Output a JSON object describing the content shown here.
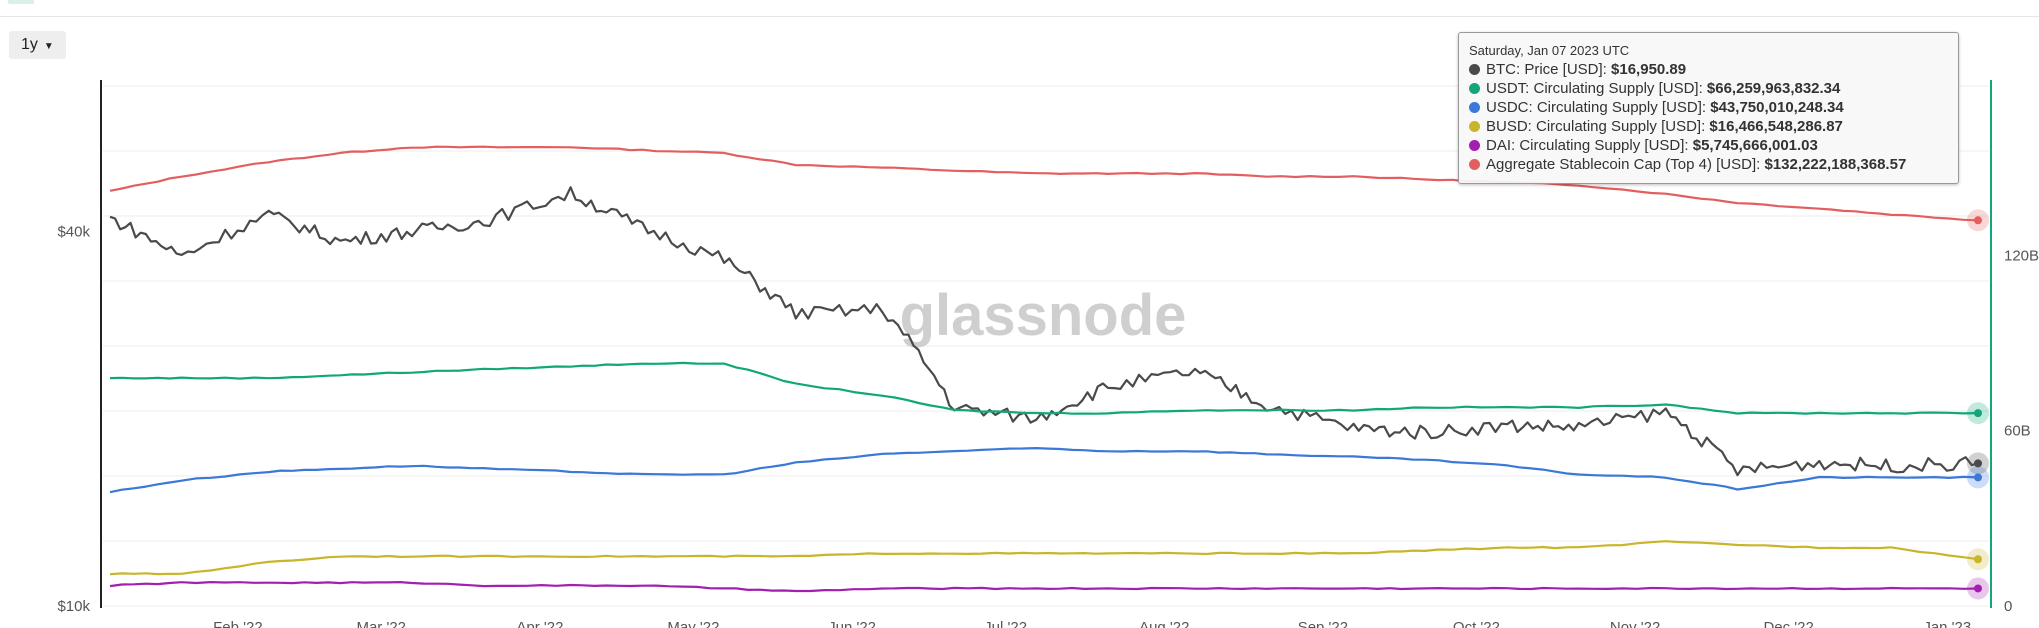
{
  "toolbar": {
    "range_label": "1y"
  },
  "watermark": "glassnode",
  "tooltip": {
    "date": "Saturday, Jan 07 2023 UTC",
    "rows": [
      {
        "color": "#4a4a4a",
        "label": "BTC: Price [USD]:",
        "value": "$16,950.89"
      },
      {
        "color": "#11a77a",
        "label": "USDT: Circulating Supply [USD]:",
        "value": "$66,259,963,832.34"
      },
      {
        "color": "#3b78d8",
        "label": "USDC: Circulating Supply [USD]:",
        "value": "$43,750,010,248.34"
      },
      {
        "color": "#c8b52a",
        "label": "BUSD: Circulating Supply [USD]:",
        "value": "$16,466,548,286.87"
      },
      {
        "color": "#a31fb0",
        "label": "DAI: Circulating Supply [USD]:",
        "value": "$5,745,666,001.03"
      },
      {
        "color": "#e35f5f",
        "label": "Aggregate Stablecoin Cap (Top 4) [USD]:",
        "value": "$132,222,188,368.57"
      }
    ]
  },
  "chart_data": {
    "type": "line",
    "x_ticks": [
      "Feb '22",
      "Mar '22",
      "Apr '22",
      "May '22",
      "Jun '22",
      "Jul '22",
      "Aug '22",
      "Sep '22",
      "Oct '22",
      "Nov '22",
      "Dec '22",
      "Jan '23"
    ],
    "y_left": {
      "scale": "log",
      "ticks": [
        "$40k",
        "$10k"
      ],
      "range": [
        10000,
        70000
      ]
    },
    "y_right": {
      "ticks": [
        "120B",
        "60B",
        "0"
      ],
      "range": [
        0,
        180
      ]
    },
    "x": [
      "2022-01-07",
      "2022-01-21",
      "2022-02-07",
      "2022-02-21",
      "2022-03-07",
      "2022-03-21",
      "2022-04-07",
      "2022-04-21",
      "2022-05-07",
      "2022-05-21",
      "2022-06-07",
      "2022-06-21",
      "2022-07-07",
      "2022-07-21",
      "2022-08-07",
      "2022-08-21",
      "2022-09-07",
      "2022-09-21",
      "2022-10-07",
      "2022-10-21",
      "2022-11-07",
      "2022-11-21",
      "2022-12-07",
      "2022-12-21",
      "2023-01-07"
    ],
    "series": [
      {
        "name": "Aggregate Stablecoin Cap (Top 4) [USD]",
        "axis": "right",
        "color": "#e35f5f",
        "values": [
          142,
          147,
          152,
          155,
          157,
          157,
          157,
          156,
          155,
          151,
          150,
          149,
          148,
          148,
          148,
          147,
          147,
          146,
          145,
          144,
          141,
          138,
          136,
          134,
          132
        ]
      },
      {
        "name": "BTC: Price [USD]",
        "axis": "left",
        "color": "#4a4a4a",
        "values": [
          42000,
          36500,
          42500,
          38500,
          40000,
          41500,
          46000,
          40500,
          36000,
          29500,
          30000,
          20800,
          20000,
          22500,
          23800,
          21000,
          19300,
          19000,
          19500,
          19400,
          20500,
          16500,
          17000,
          16800,
          16950
        ]
      },
      {
        "name": "USDT: Circulating Supply [USD]",
        "axis": "right",
        "color": "#11a77a",
        "values": [
          78,
          78,
          78,
          79,
          80,
          81,
          82,
          83,
          83,
          76,
          72,
          67,
          66,
          66,
          67,
          67,
          67,
          68,
          68,
          68,
          69,
          66,
          66,
          66,
          66
        ]
      },
      {
        "name": "USDC: Circulating Supply [USD]",
        "axis": "right",
        "color": "#3b78d8",
        "values": [
          39,
          43,
          46,
          47,
          48,
          47,
          46,
          45,
          45,
          49,
          52,
          53,
          54,
          53,
          53,
          52,
          51,
          50,
          48,
          45,
          44,
          40,
          44,
          44,
          44
        ]
      },
      {
        "name": "BUSD: Circulating Supply [USD]",
        "axis": "right",
        "color": "#c8b52a",
        "values": [
          11,
          11,
          15,
          17,
          17,
          17,
          17,
          17,
          17,
          17,
          18,
          18,
          18,
          18,
          18,
          18,
          18,
          19,
          20,
          20,
          22,
          21,
          20,
          20,
          16
        ]
      },
      {
        "name": "DAI: Circulating Supply [USD]",
        "axis": "right",
        "color": "#a31fb0",
        "values": [
          7,
          8,
          8,
          8,
          8,
          7,
          7,
          7,
          6,
          5,
          6,
          6,
          6,
          6,
          6,
          6,
          6,
          6,
          6,
          6,
          6,
          6,
          6,
          6,
          6
        ]
      }
    ],
    "grid": true
  }
}
